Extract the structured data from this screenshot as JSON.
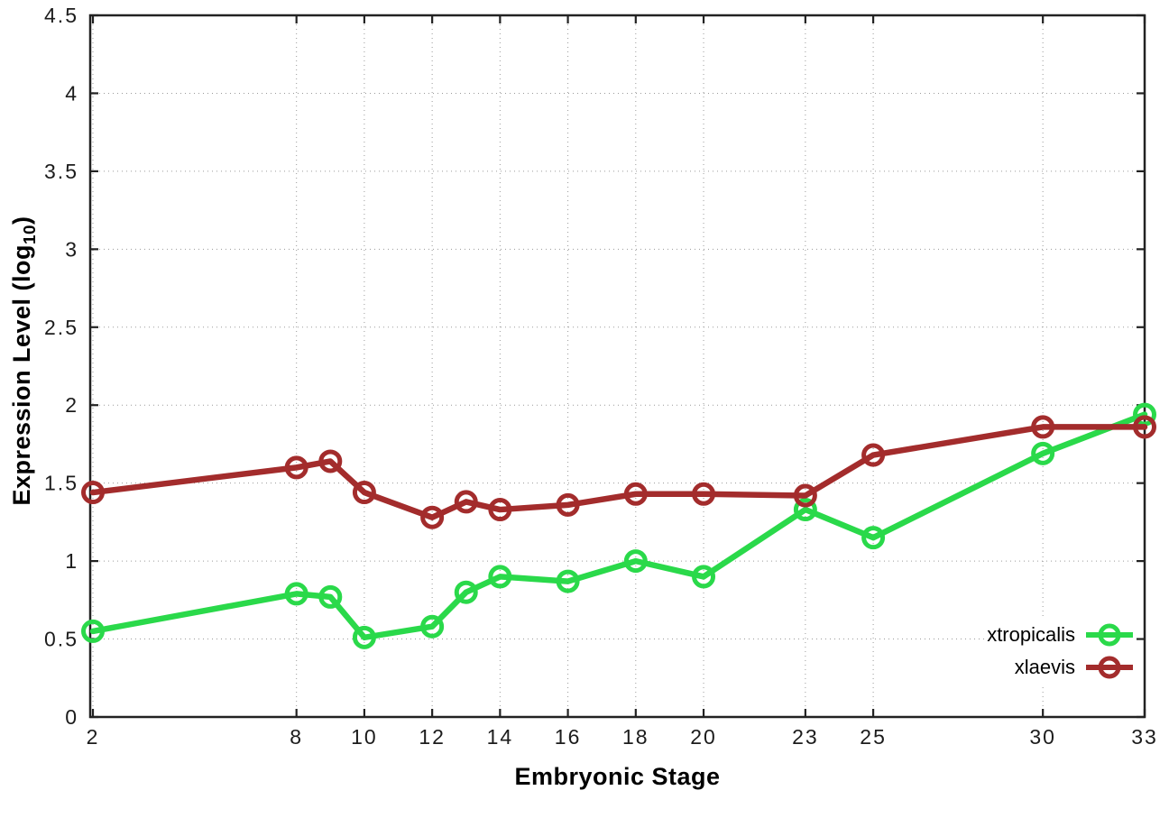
{
  "figure": {
    "background": "#ffffff",
    "x_axis_title": "Embryonic Stage",
    "y_axis_title_prefix": "Expression Level (log",
    "y_axis_title_sub": "10",
    "y_axis_title_suffix": ")"
  },
  "style": {
    "grid_color": "#9a9a9a",
    "border_color": "#222222",
    "tick_label_color": "#1c1c1c"
  },
  "chart_data": {
    "type": "line",
    "title": "",
    "xlabel": "Embryonic Stage",
    "ylabel": "Expression Level (log10)",
    "x": [
      2,
      8,
      9,
      10,
      12,
      13,
      14,
      16,
      18,
      20,
      23,
      25,
      30,
      33
    ],
    "series": [
      {
        "name": "xtropicalis",
        "color": "#2ad94a",
        "values": [
          0.55,
          0.79,
          0.77,
          0.51,
          0.58,
          0.8,
          0.9,
          0.87,
          1.0,
          0.9,
          1.33,
          1.15,
          1.69,
          1.94
        ]
      },
      {
        "name": "xlaevis",
        "color": "#a32c2c",
        "values": [
          1.44,
          1.6,
          1.64,
          1.44,
          1.28,
          1.38,
          1.33,
          1.36,
          1.43,
          1.43,
          1.42,
          1.68,
          1.86,
          1.86
        ]
      }
    ],
    "x_ticks": [
      2,
      8,
      10,
      12,
      14,
      16,
      18,
      20,
      23,
      25,
      30,
      33
    ],
    "y_ticks": [
      0,
      0.5,
      1,
      1.5,
      2,
      2.5,
      3,
      3.5,
      4,
      4.5
    ],
    "xlim": [
      1.92,
      33
    ],
    "ylim": [
      0,
      4.5
    ],
    "grid": true,
    "legend_position": "bottom-right"
  }
}
